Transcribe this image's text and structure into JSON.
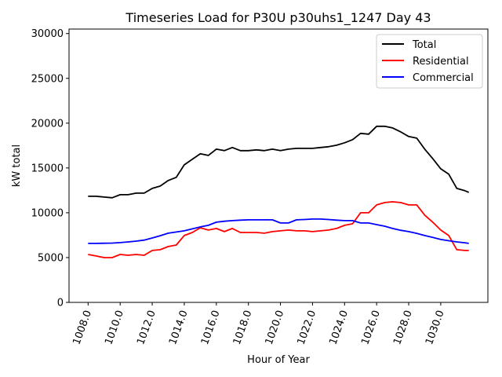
{
  "chart_data": {
    "type": "line",
    "title": "Timeseries Load for P30U p30uhs1_1247  Day 43",
    "xlabel": "Hour of Year",
    "ylabel": "kW total",
    "xlim": [
      1006.81,
      1032.94
    ],
    "ylim": [
      0,
      30500
    ],
    "xticks": [
      1008,
      1010,
      1012,
      1014,
      1016,
      1018,
      1020,
      1022,
      1024,
      1026,
      1028,
      1030
    ],
    "xtick_labels": [
      "1008.0",
      "1010.0",
      "1012.0",
      "1014.0",
      "1016.0",
      "1018.0",
      "1020.0",
      "1022.0",
      "1024.0",
      "1026.0",
      "1028.0",
      "1030.0"
    ],
    "yticks": [
      0,
      5000,
      10000,
      15000,
      20000,
      25000,
      30000
    ],
    "ytick_labels": [
      "0",
      "5000",
      "10000",
      "15000",
      "20000",
      "25000",
      "30000"
    ],
    "grid": false,
    "legend_position": "top-right",
    "x": [
      1008,
      1008.5,
      1009,
      1009.5,
      1010,
      1010.5,
      1011,
      1011.5,
      1012,
      1012.5,
      1013,
      1013.5,
      1014,
      1014.5,
      1015,
      1015.5,
      1016,
      1016.5,
      1017,
      1017.5,
      1018,
      1018.5,
      1019,
      1019.5,
      1020,
      1020.5,
      1021,
      1021.5,
      1022,
      1022.5,
      1023,
      1023.5,
      1024,
      1024.5,
      1025,
      1025.5,
      1026,
      1026.5,
      1027,
      1027.5,
      1028,
      1028.5,
      1029,
      1029.5,
      1030,
      1030.5,
      1031,
      1031.5,
      1031.75
    ],
    "series": [
      {
        "name": "Total",
        "color": "#000000",
        "values": [
          11840,
          11840,
          11750,
          11670,
          12020,
          12020,
          12190,
          12190,
          12720,
          12980,
          13600,
          13950,
          15350,
          15970,
          16580,
          16400,
          17100,
          16930,
          17280,
          16930,
          16930,
          17020,
          16930,
          17100,
          16930,
          17100,
          17190,
          17190,
          17190,
          17280,
          17370,
          17540,
          17810,
          18160,
          18860,
          18770,
          19650,
          19650,
          19470,
          19030,
          18510,
          18330,
          17100,
          16050,
          14910,
          14300,
          12720,
          12460,
          12280
        ]
      },
      {
        "name": "Residential",
        "color": "#ff0000",
        "values": [
          5350,
          5180,
          5000,
          5000,
          5350,
          5260,
          5350,
          5260,
          5790,
          5880,
          6230,
          6400,
          7460,
          7800,
          8330,
          8070,
          8250,
          7900,
          8250,
          7800,
          7800,
          7800,
          7720,
          7900,
          7980,
          8070,
          7980,
          7980,
          7900,
          7980,
          8070,
          8250,
          8600,
          8770,
          10000,
          10000,
          10880,
          11140,
          11230,
          11140,
          10880,
          10880,
          9740,
          8950,
          8070,
          7460,
          5880,
          5790,
          5790
        ]
      },
      {
        "name": "Commercial",
        "color": "#0000ff",
        "values": [
          6580,
          6580,
          6600,
          6620,
          6670,
          6750,
          6840,
          6950,
          7190,
          7440,
          7720,
          7850,
          7980,
          8200,
          8420,
          8600,
          8950,
          9050,
          9120,
          9180,
          9210,
          9210,
          9210,
          9210,
          8860,
          8860,
          9210,
          9250,
          9300,
          9300,
          9250,
          9180,
          9120,
          9120,
          8860,
          8860,
          8680,
          8500,
          8250,
          8050,
          7900,
          7700,
          7460,
          7250,
          7020,
          6880,
          6750,
          6650,
          6580
        ]
      }
    ]
  }
}
